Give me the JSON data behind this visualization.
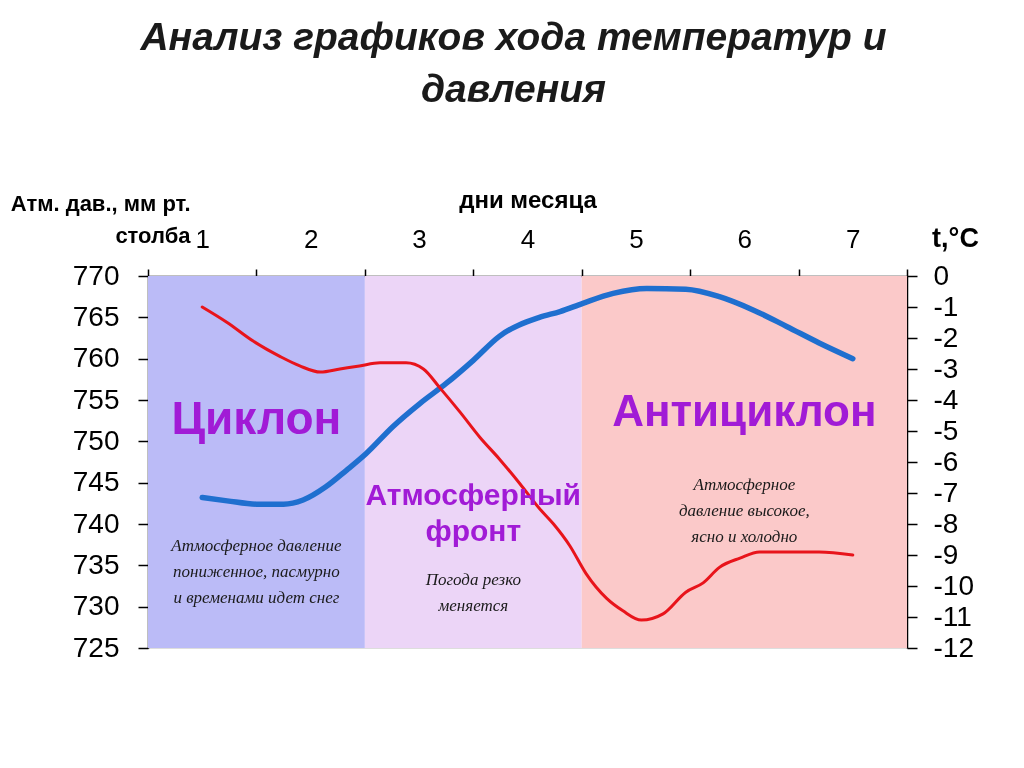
{
  "chart_data": {
    "type": "line",
    "title": "Анализ графиков хода температур и\nдавления",
    "xlabel": "дни месяца",
    "ylabel": "Атм. дав., мм рт.\nстолба",
    "y2label": "t,°C",
    "xlim": [
      0.5,
      7.5
    ],
    "xticks": [
      {
        "value": 0.5,
        "label": null
      },
      1,
      {
        "value": 1.5,
        "label": null
      },
      2,
      {
        "value": 2.5,
        "label": null
      },
      3,
      {
        "value": 3.5,
        "label": null
      },
      4,
      {
        "value": 4.5,
        "label": null
      },
      5,
      {
        "value": 5.5,
        "label": null
      },
      6,
      {
        "value": 6.5,
        "label": null
      },
      7,
      {
        "value": 7.5,
        "label": null
      }
    ],
    "ylim": [
      725,
      770
    ],
    "yticks": [
      725,
      730,
      735,
      740,
      745,
      750,
      755,
      760,
      765,
      770
    ],
    "y2lim": [
      -12,
      0
    ],
    "y2ticks": [
      0,
      -1,
      -2,
      -3,
      -4,
      -5,
      -6,
      -7,
      -8,
      -9,
      -10,
      -11,
      -12
    ],
    "grid": false,
    "series": [
      {
        "color": "#1f6fcf",
        "x": [
          1.0,
          1.23,
          1.5,
          1.75,
          1.93,
          2.14,
          2.33,
          2.51,
          2.76,
          3.01,
          3.25,
          3.5,
          3.74,
          4.11,
          4.3,
          4.51,
          4.79,
          5.1,
          5.46,
          5.77,
          6.08,
          6.39,
          6.69,
          7.0
        ],
        "values": [
          743.2,
          742.8,
          742.4,
          742.4,
          742.9,
          744.5,
          746.5,
          748.5,
          751.8,
          754.6,
          757.0,
          759.8,
          762.7,
          765.0,
          765.7,
          766.7,
          767.9,
          768.5,
          768.4,
          767.5,
          765.9,
          763.9,
          761.9,
          760.0
        ]
      },
      {
        "color": "#e8141b",
        "axis": "y2",
        "x": [
          1.0,
          1.23,
          1.47,
          1.72,
          1.9,
          2.09,
          2.27,
          2.45,
          2.64,
          2.88,
          3.04,
          3.19,
          3.38,
          3.56,
          3.74,
          3.93,
          4.11,
          4.24,
          4.39,
          4.54,
          4.73,
          4.88,
          5.05,
          5.25,
          5.46,
          5.62,
          5.77,
          5.96,
          6.14,
          6.39,
          6.69,
          7.0
        ],
        "values": [
          -1.0,
          -1.5,
          -2.1,
          -2.6,
          -2.9,
          -3.1,
          -3.0,
          -2.9,
          -2.8,
          -2.8,
          -3.0,
          -3.6,
          -4.4,
          -5.2,
          -5.9,
          -6.7,
          -7.5,
          -8.0,
          -8.7,
          -9.6,
          -10.4,
          -10.8,
          -11.1,
          -10.9,
          -10.2,
          -9.9,
          -9.4,
          -9.1,
          -8.9,
          -8.9,
          -8.9,
          -9.0
        ]
      }
    ],
    "bands": [
      {
        "axis": "x",
        "from": 0.5,
        "to": 2.5,
        "label": "Циклон",
        "color": "#bbbbf7"
      },
      {
        "axis": "x",
        "from": 2.5,
        "to": 4.5,
        "label": "Атмосферный\nфронт",
        "color": "#ecd5f7"
      },
      {
        "axis": "x",
        "from": 4.5,
        "to": 7.5,
        "label": "Антициклон",
        "color": "#fbc9c9"
      }
    ],
    "annotations": [
      "Атмосферное давление\nпониженное, пасмурно\nи временами идет снег",
      "Погода резко\nменяется",
      "Атмосферное\nдавление высокое,\nясно и холодно"
    ]
  }
}
